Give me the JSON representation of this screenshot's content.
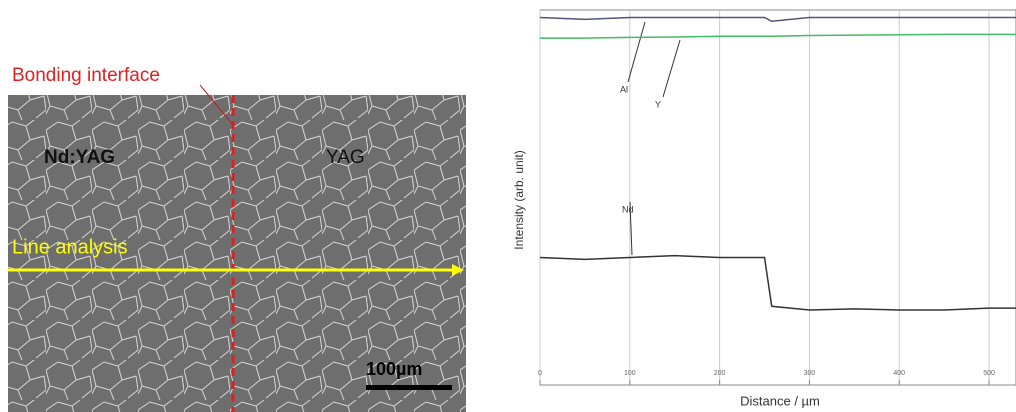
{
  "micrograph": {
    "interface_label": "Bonding interface",
    "left_label": "Nd:YAG",
    "right_label": "YAG",
    "line_label": "Line analysis",
    "scale_bar": "100µm"
  },
  "chart_data": {
    "type": "line",
    "x_label": "Distance / µm",
    "y_label": "Intensity (arb. unit)",
    "x": [
      0,
      50,
      100,
      150,
      200,
      250,
      258,
      300,
      350,
      400,
      450,
      500,
      530
    ],
    "series": [
      {
        "name": "Al",
        "color": "#555577",
        "values": [
          98,
          97.5,
          98,
          98,
          98,
          98,
          97,
          98,
          98,
          98,
          98,
          98,
          98
        ]
      },
      {
        "name": "Y",
        "color": "#44bb66",
        "values": [
          92.5,
          92.5,
          92.7,
          92.8,
          93,
          93,
          93,
          93.2,
          93.3,
          93.4,
          93.5,
          93.5,
          93.5
        ]
      },
      {
        "name": "Nd",
        "color": "#333333",
        "values": [
          34,
          33.5,
          34,
          34.5,
          34,
          34,
          21,
          20,
          20.3,
          20,
          20,
          20.5,
          20.5
        ]
      }
    ],
    "xlim": [
      0,
      530
    ],
    "xticks": [
      0,
      100,
      200,
      300,
      400,
      500
    ],
    "ylim": [
      0,
      100
    ],
    "grid": true
  }
}
